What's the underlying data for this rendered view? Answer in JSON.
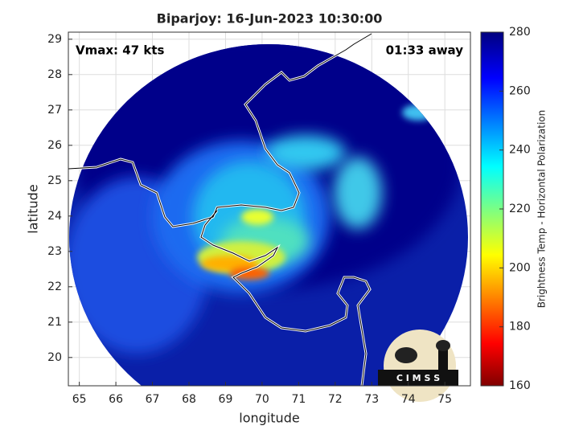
{
  "chart_data": {
    "type": "map",
    "title": "Biparjoy: 16-Jun-2023 10:30:00",
    "annotations": [
      "Vmax: 47 kts",
      "01:33 away"
    ],
    "xlabel": "longitude",
    "ylabel": "latitude",
    "xlim": [
      64.7,
      75.7
    ],
    "xticks": [
      65,
      66,
      67,
      68,
      69,
      70,
      71,
      72,
      73,
      74,
      75
    ],
    "ylim": [
      19.2,
      29.2
    ],
    "yticks": [
      20,
      21,
      22,
      23,
      24,
      25,
      26,
      27,
      28,
      29
    ],
    "grid": true,
    "colorbar": {
      "label": "Brightness Temp - Horizontal Polarization",
      "lim": [
        160,
        280
      ],
      "ticks": [
        160,
        180,
        200,
        220,
        240,
        260,
        280
      ]
    },
    "logo": "C I M S S"
  }
}
